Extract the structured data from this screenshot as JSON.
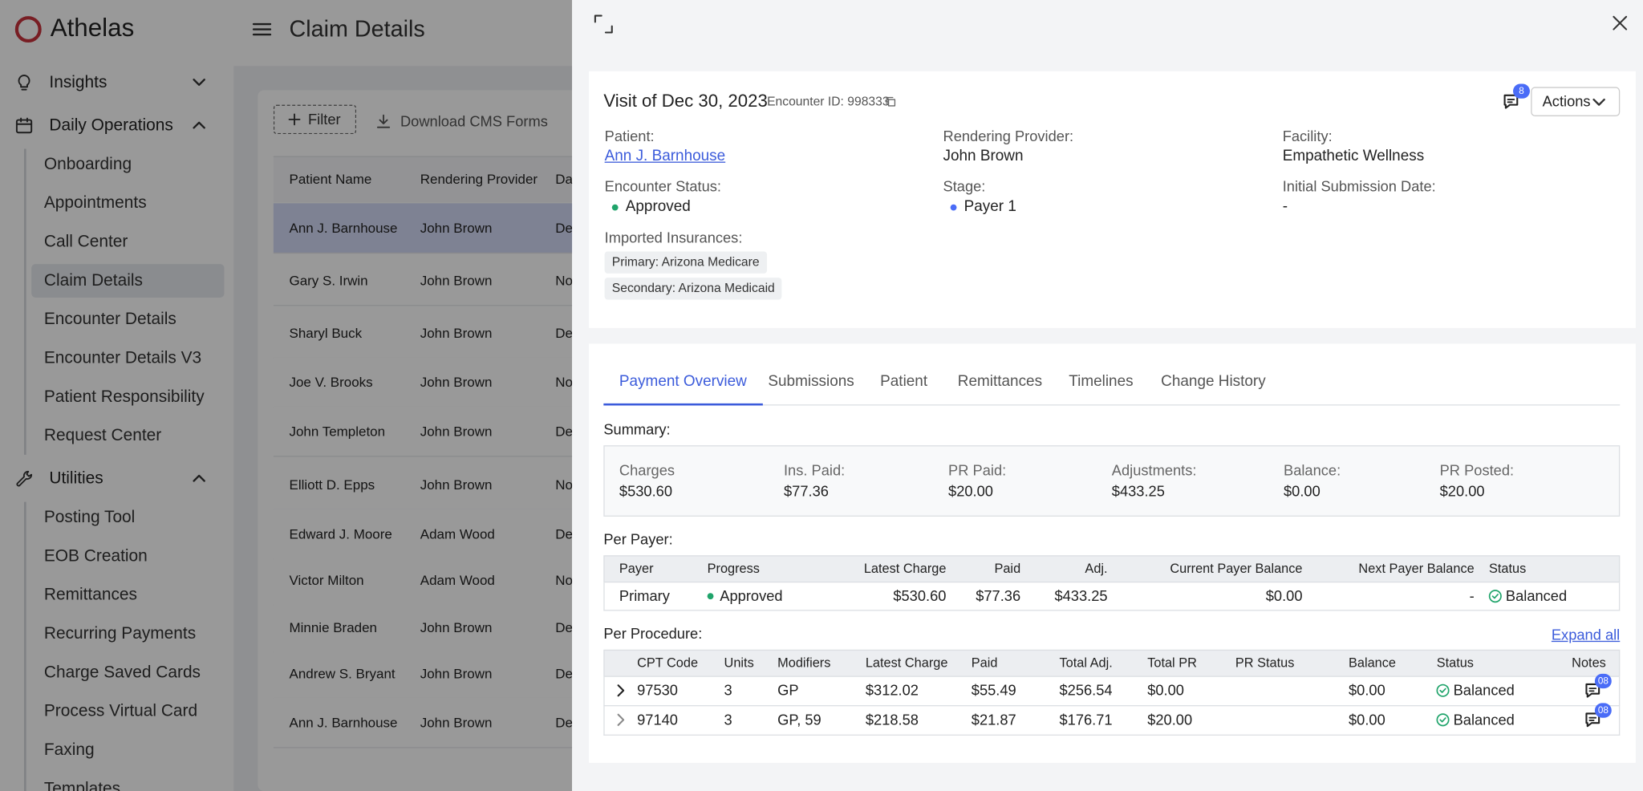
{
  "sidebar": {
    "logo": "Athelas",
    "sections": [
      {
        "label": "Insights",
        "items": []
      },
      {
        "label": "Daily Operations",
        "items": [
          "Onboarding",
          "Appointments",
          "Call Center",
          "Claim Details",
          "Encounter Details",
          "Encounter Details V3",
          "Patient Responsibility",
          "Request Center"
        ]
      },
      {
        "label": "Utilities",
        "items": [
          "Posting Tool",
          "EOB Creation",
          "Remittances",
          "Recurring Payments",
          "Charge Saved Cards",
          "Process Virtual Card",
          "Faxing",
          "Templates"
        ]
      }
    ]
  },
  "header": {
    "title": "Claim Details"
  },
  "toolbar": {
    "filter": "Filter",
    "download": "Download CMS Forms"
  },
  "claims_table": {
    "columns": [
      "Patient Name",
      "Rendering Provider",
      "Date"
    ],
    "rows": [
      [
        "Ann J. Barnhouse",
        "John Brown",
        "Dec"
      ],
      [
        "Gary S. Irwin",
        "John Brown",
        "Nov"
      ],
      [
        "Sharyl Buck",
        "John Brown",
        "Dec"
      ],
      [
        "Joe V. Brooks",
        "John Brown",
        "Nov"
      ],
      [
        "John Templeton",
        "John Brown",
        "Dec"
      ],
      [
        "Elliott D. Epps",
        "John Brown",
        "Nov"
      ],
      [
        "Edward J. Moore",
        "Adam Wood",
        "Dec"
      ],
      [
        "Victor Milton",
        "Adam Wood",
        "Nov"
      ],
      [
        "Minnie Braden",
        "John Brown",
        "Dec"
      ],
      [
        "Andrew S. Bryant",
        "John Brown",
        "Dec"
      ],
      [
        "Ann J. Barnhouse",
        "John Brown",
        "Dec"
      ]
    ]
  },
  "panel": {
    "visit_title": "Visit of Dec 30, 2023",
    "encounter_id": "Encounter ID: 998333",
    "notes_badge": "8",
    "actions": "Actions",
    "fields": [
      {
        "label": "Patient:",
        "value": "Ann J. Barnhouse"
      },
      {
        "label": "Rendering Provider:",
        "value": "John Brown"
      },
      {
        "label": "Facility:",
        "value": "Empathetic Wellness"
      },
      {
        "label": "Encounter Status:",
        "value": "Approved"
      },
      {
        "label": "Stage:",
        "value": "Payer 1"
      },
      {
        "label": "Initial Submission Date:",
        "value": "-"
      }
    ],
    "insurances": {
      "label": "Imported Insurances:",
      "items": [
        "Primary: Arizona Medicare",
        "Secondary: Arizona Medicaid"
      ]
    },
    "tabs": [
      "Payment Overview",
      "Submissions",
      "Patient",
      "Remittances",
      "Timelines",
      "Change History"
    ],
    "summary": {
      "label": "Summary:",
      "items": [
        {
          "label": "Charges",
          "value": "$530.60"
        },
        {
          "label": "Ins. Paid:",
          "value": "$77.36"
        },
        {
          "label": "PR Paid:",
          "value": "$20.00"
        },
        {
          "label": "Adjustments:",
          "value": "$433.25"
        },
        {
          "label": "Balance:",
          "value": "$0.00"
        },
        {
          "label": "PR Posted:",
          "value": "$20.00"
        }
      ]
    },
    "per_payer": {
      "label": "Per Payer:",
      "columns": [
        "Payer",
        "Progress",
        "Latest Charge",
        "Paid",
        "Adj.",
        "Current Payer Balance",
        "Next Payer Balance",
        "Status"
      ],
      "rows": [
        [
          "Primary",
          "Approved",
          "$530.60",
          "$77.36",
          "$433.25",
          "$0.00",
          "-",
          "Balanced"
        ]
      ]
    },
    "per_procedure": {
      "label": "Per Procedure:",
      "expand": "Expand all",
      "columns": [
        "CPT Code",
        "Units",
        "Modifiers",
        "Latest Charge",
        "Paid",
        "Total Adj.",
        "Total PR",
        "PR Status",
        "Balance",
        "Status",
        "Notes"
      ],
      "rows": [
        {
          "cpt": "97530",
          "units": "3",
          "modifiers": "GP",
          "latest_charge": "$312.02",
          "paid": "$55.49",
          "total_adj": "$256.54",
          "total_pr": "$0.00",
          "balance": "$0.00",
          "status": "Balanced",
          "notes_badge": "08"
        },
        {
          "cpt": "97140",
          "units": "3",
          "modifiers": "GP, 59",
          "latest_charge": "$218.58",
          "paid": "$21.87",
          "total_adj": "$176.71",
          "total_pr": "$20.00",
          "balance": "$0.00",
          "status": "Balanced",
          "notes_badge": "08"
        }
      ]
    }
  }
}
